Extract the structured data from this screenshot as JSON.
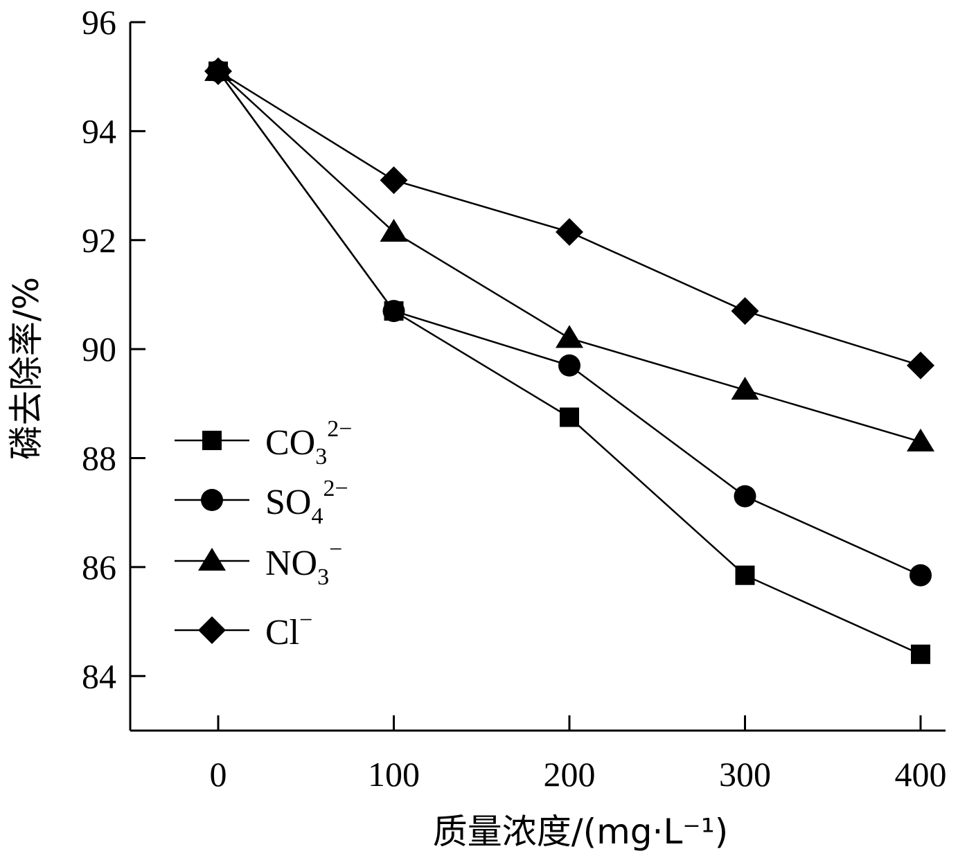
{
  "chart_data": {
    "type": "line",
    "x": [
      0,
      100,
      200,
      300,
      400
    ],
    "xlabel": "质量浓度/(mg·L⁻¹)",
    "ylabel": "磷去除率/%",
    "xlim": [
      -50,
      400
    ],
    "ylim": [
      83,
      96
    ],
    "xticks": [
      "0",
      "100",
      "200",
      "300",
      "400"
    ],
    "yticks": [
      "84",
      "86",
      "88",
      "90",
      "92",
      "94",
      "96"
    ],
    "grid": false,
    "legend_position": "left",
    "series": [
      {
        "name": "CO₃²⁻",
        "marker": "square",
        "values": [
          95.1,
          90.7,
          88.75,
          85.85,
          84.4
        ]
      },
      {
        "name": "SO₄²⁻",
        "marker": "circle",
        "values": [
          95.1,
          90.7,
          89.7,
          87.3,
          85.85
        ]
      },
      {
        "name": "NO₃⁻",
        "marker": "triangle",
        "values": [
          95.1,
          92.15,
          90.2,
          89.25,
          88.3
        ]
      },
      {
        "name": "Cl⁻",
        "marker": "diamond",
        "values": [
          95.1,
          93.1,
          92.15,
          90.7,
          89.7
        ]
      }
    ],
    "legend": [
      {
        "base": "CO",
        "sub": "3",
        "sup": "2−"
      },
      {
        "base": "SO",
        "sub": "4",
        "sup": "2−"
      },
      {
        "base": "NO",
        "sub": "3",
        "sup": "−"
      },
      {
        "base": "Cl",
        "sub": "",
        "sup": "−"
      }
    ]
  }
}
